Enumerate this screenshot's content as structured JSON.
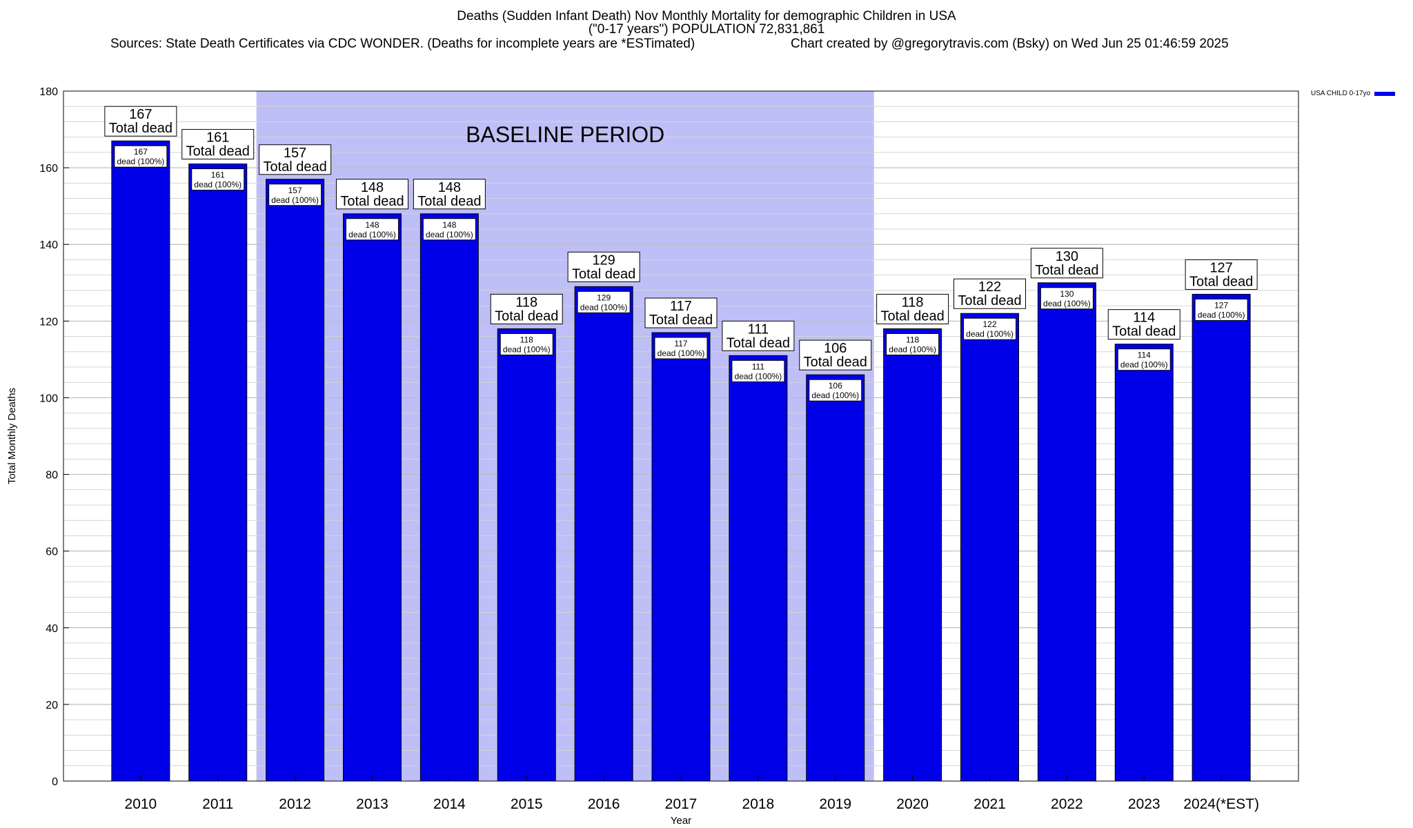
{
  "header": {
    "title": "Deaths (Sudden Infant Death) Nov Monthly Mortality for demographic Children in USA",
    "subtitle": "(\"0-17 years\") POPULATION 72,831,861",
    "sources": "Sources: State Death Certificates via CDC WONDER. (Deaths for incomplete years are *ESTimated)",
    "credit": "Chart created by @gregorytravis.com (Bsky) on Wed Jun 25 01:46:59 2025"
  },
  "legend": {
    "label": "USA CHILD 0-17yo"
  },
  "colors": {
    "bar": "#0000e8",
    "baseline_band": "#bfbff7",
    "grid": "#d4d4d4"
  },
  "chart_data": {
    "type": "bar",
    "xlabel": "Year",
    "ylabel": "Total Monthly Deaths",
    "ylim": [
      0,
      180
    ],
    "yticks": [
      0,
      20,
      40,
      60,
      80,
      100,
      120,
      140,
      160,
      180
    ],
    "grid": true,
    "legend_position": "top-right, outside plot",
    "categories": [
      "2010",
      "2011",
      "2012",
      "2013",
      "2014",
      "2015",
      "2016",
      "2017",
      "2018",
      "2019",
      "2020",
      "2021",
      "2022",
      "2023",
      "2024(*EST)"
    ],
    "series": [
      {
        "name": "USA CHILD 0-17yo",
        "values": [
          167,
          161,
          157,
          148,
          148,
          118,
          129,
          117,
          111,
          106,
          118,
          122,
          130,
          114,
          127
        ]
      }
    ],
    "total_label_suffix": "Total dead",
    "inner_label_suffix": "dead (100%)",
    "annotation": {
      "text": "BASELINE PERIOD",
      "from": "2012",
      "to": "2019"
    }
  }
}
